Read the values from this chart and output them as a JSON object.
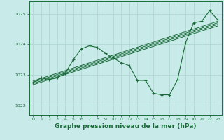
{
  "bg_color": "#c8eae8",
  "grid_color": "#afd8d4",
  "line_color": "#1a6b3a",
  "xlabel": "Graphe pression niveau de la mer (hPa)",
  "xlabel_fontsize": 6.5,
  "ylim": [
    1021.7,
    1025.4
  ],
  "xlim": [
    -0.5,
    23.5
  ],
  "yticks": [
    1022,
    1023,
    1024,
    1025
  ],
  "xticks": [
    0,
    1,
    2,
    3,
    4,
    5,
    6,
    7,
    8,
    9,
    10,
    11,
    12,
    13,
    14,
    15,
    16,
    17,
    18,
    19,
    20,
    21,
    22,
    23
  ],
  "main_line_x": [
    0,
    1,
    2,
    3,
    4,
    5,
    6,
    7,
    8,
    9,
    10,
    11,
    12,
    13,
    14,
    15,
    16,
    17,
    18,
    19,
    20,
    21,
    22,
    23
  ],
  "main_line_y": [
    1022.75,
    1022.9,
    1022.85,
    1022.9,
    1023.05,
    1023.5,
    1023.85,
    1023.95,
    1023.9,
    1023.7,
    1023.55,
    1023.4,
    1023.3,
    1022.82,
    1022.82,
    1022.4,
    1022.35,
    1022.35,
    1022.85,
    1024.05,
    1024.7,
    1024.75,
    1025.1,
    1024.8
  ],
  "trend_lines": [
    {
      "x": [
        0,
        23
      ],
      "y": [
        1022.68,
        1024.6
      ]
    },
    {
      "x": [
        0,
        23
      ],
      "y": [
        1022.72,
        1024.65
      ]
    },
    {
      "x": [
        0,
        23
      ],
      "y": [
        1022.76,
        1024.7
      ]
    },
    {
      "x": [
        0,
        23
      ],
      "y": [
        1022.8,
        1024.75
      ]
    }
  ]
}
